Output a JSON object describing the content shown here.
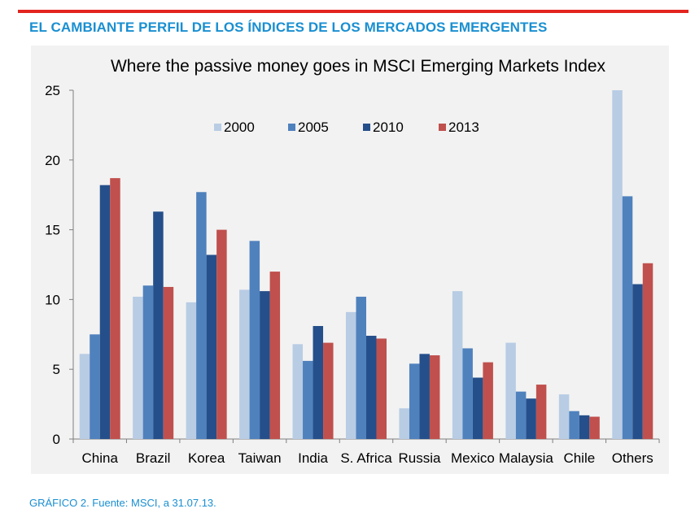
{
  "header": {
    "title": "EL CAMBIANTE PERFIL DE LOS ÍNDICES DE LOS MERCADOS EMERGENTES"
  },
  "footer": {
    "caption": "GRÁFICO 2. Fuente: MSCI, a 31.07.13."
  },
  "colors": {
    "rule": "#e2241f",
    "title": "#1a8fd1",
    "panel": "#f2f2f2"
  },
  "chart_data": {
    "type": "bar",
    "title": "Where the passive money goes in MSCI Emerging Markets Index",
    "xlabel": "",
    "ylabel": "",
    "ylim": [
      0,
      25
    ],
    "yticks": [
      0,
      5,
      10,
      15,
      20,
      25
    ],
    "grid": false,
    "legend_position": "top-center",
    "categories": [
      "China",
      "Brazil",
      "Korea",
      "Taiwan",
      "India",
      "S. Africa",
      "Russia",
      "Mexico",
      "Malaysia",
      "Chile",
      "Others"
    ],
    "series": [
      {
        "name": "2000",
        "color": "#b8cce4",
        "values": [
          6.1,
          10.2,
          9.8,
          10.7,
          6.8,
          9.1,
          2.2,
          10.6,
          6.9,
          3.2,
          25.0
        ]
      },
      {
        "name": "2005",
        "color": "#4f81bd",
        "values": [
          7.5,
          11.0,
          17.7,
          14.2,
          5.6,
          10.2,
          5.4,
          6.5,
          3.4,
          2.0,
          17.4
        ]
      },
      {
        "name": "2010",
        "color": "#254f8a",
        "values": [
          18.2,
          16.3,
          13.2,
          10.6,
          8.1,
          7.4,
          6.1,
          4.4,
          2.9,
          1.7,
          11.1
        ]
      },
      {
        "name": "2013",
        "color": "#c0504d",
        "values": [
          18.7,
          10.9,
          15.0,
          12.0,
          6.9,
          7.2,
          6.0,
          5.5,
          3.9,
          1.6,
          12.6
        ]
      }
    ]
  }
}
